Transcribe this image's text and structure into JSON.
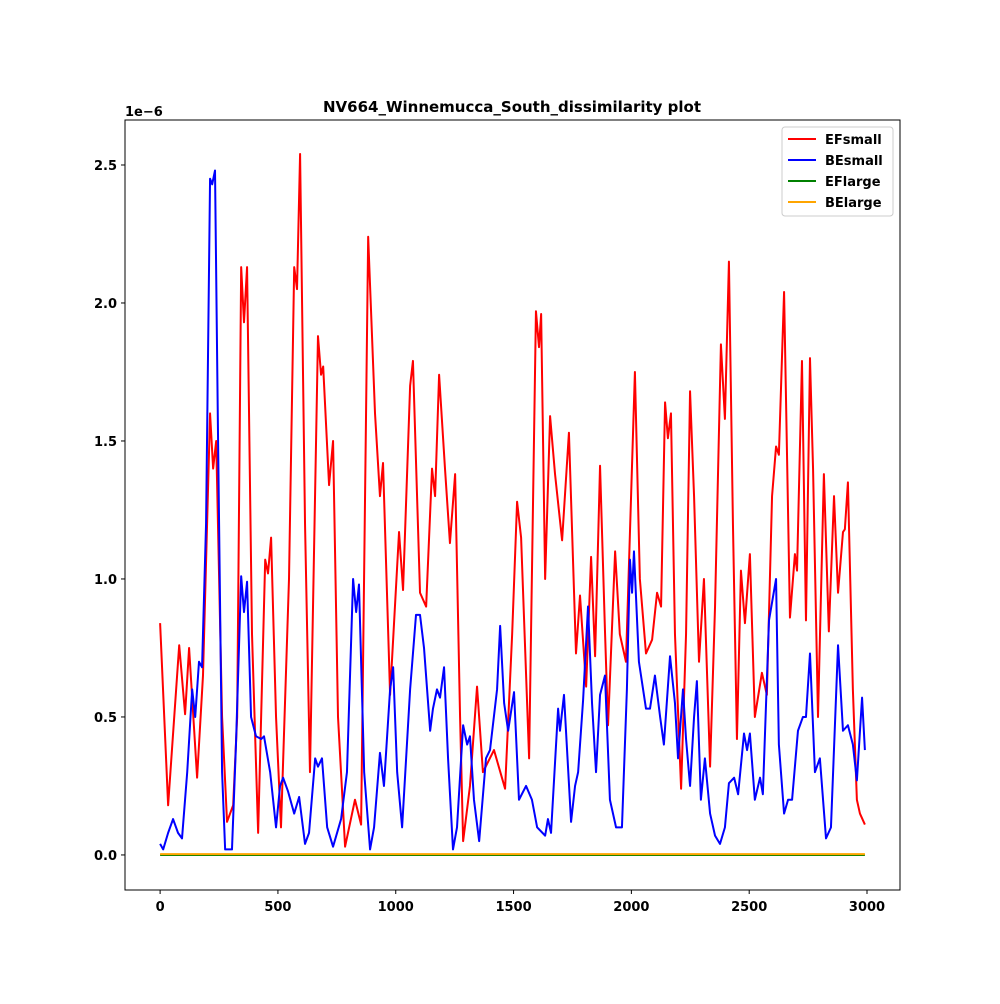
{
  "chart_data": {
    "type": "line",
    "title": "NV664_Winnemucca_South_dissimilarity plot",
    "y_offset_label": "1e−6",
    "xlim": [
      -149,
      3140
    ],
    "ylim": [
      -0.127,
      2.663
    ],
    "xticks": [
      0,
      500,
      1000,
      1500,
      2000,
      2500,
      3000
    ],
    "yticks": [
      {
        "value": 0,
        "label": "0.0"
      },
      0.5,
      {
        "value": 1,
        "label": "1.0"
      },
      1.5,
      {
        "value": 2,
        "label": "2.0"
      },
      2.5
    ],
    "legend": "upper right",
    "series": [
      {
        "name": "EFsmall",
        "color": "#ff0000",
        "x": [
          0,
          34,
          81,
          106,
          123,
          157,
          182,
          212,
          225,
          238,
          263,
          284,
          310,
          327,
          344,
          356,
          369,
          390,
          416,
          446,
          458,
          471,
          492,
          513,
          547,
          569,
          581,
          594,
          615,
          636,
          670,
          683,
          692,
          717,
          734,
          755,
          785,
          827,
          853,
          883,
          912,
          933,
          946,
          976,
          1014,
          1031,
          1061,
          1073,
          1103,
          1129,
          1154,
          1167,
          1184,
          1209,
          1230,
          1252,
          1273,
          1286,
          1315,
          1345,
          1370,
          1417,
          1464,
          1494,
          1515,
          1532,
          1566,
          1595,
          1608,
          1617,
          1634,
          1655,
          1676,
          1706,
          1735,
          1765,
          1782,
          1808,
          1829,
          1846,
          1867,
          1888,
          1901,
          1931,
          1951,
          1977,
          2015,
          2036,
          2062,
          2088,
          2109,
          2126,
          2143,
          2155,
          2168,
          2185,
          2211,
          2232,
          2249,
          2266,
          2287,
          2308,
          2334,
          2355,
          2380,
          2397,
          2414,
          2431,
          2448,
          2465,
          2482,
          2503,
          2524,
          2554,
          2575,
          2597,
          2614,
          2626,
          2648,
          2673,
          2694,
          2703,
          2724,
          2741,
          2758,
          2771,
          2792,
          2817,
          2838,
          2860,
          2877,
          2898,
          2906,
          2919,
          2940,
          2957,
          2970,
          2991
        ],
        "values": [
          0.84,
          0.18,
          0.76,
          0.51,
          0.75,
          0.28,
          0.65,
          1.6,
          1.4,
          1.5,
          0.5,
          0.12,
          0.18,
          0.5,
          2.13,
          1.93,
          2.13,
          0.8,
          0.08,
          1.07,
          1.02,
          1.15,
          0.5,
          0.1,
          1.0,
          2.13,
          2.05,
          2.54,
          1.2,
          0.3,
          1.88,
          1.74,
          1.77,
          1.34,
          1.5,
          0.5,
          0.03,
          0.2,
          0.11,
          2.24,
          1.6,
          1.3,
          1.42,
          0.58,
          1.17,
          0.96,
          1.7,
          1.79,
          0.95,
          0.9,
          1.4,
          1.3,
          1.74,
          1.4,
          1.13,
          1.38,
          0.5,
          0.05,
          0.25,
          0.61,
          0.3,
          0.38,
          0.24,
          0.8,
          1.28,
          1.15,
          0.35,
          1.97,
          1.84,
          1.96,
          1.0,
          1.59,
          1.38,
          1.14,
          1.53,
          0.73,
          0.94,
          0.61,
          1.08,
          0.72,
          1.41,
          0.81,
          0.47,
          1.1,
          0.8,
          0.7,
          1.75,
          1.0,
          0.73,
          0.78,
          0.95,
          0.9,
          1.64,
          1.51,
          1.6,
          0.8,
          0.24,
          0.8,
          1.68,
          1.3,
          0.7,
          1.0,
          0.32,
          0.9,
          1.85,
          1.58,
          2.15,
          1.2,
          0.42,
          1.03,
          0.84,
          1.09,
          0.5,
          0.66,
          0.58,
          1.3,
          1.48,
          1.45,
          2.04,
          0.86,
          1.09,
          1.03,
          1.79,
          0.85,
          1.8,
          1.4,
          0.5,
          1.38,
          0.81,
          1.3,
          0.95,
          1.17,
          1.18,
          1.35,
          0.6,
          0.2,
          0.15,
          0.11
        ]
      },
      {
        "name": "BEsmall",
        "color": "#0000ff",
        "x": [
          0,
          13,
          34,
          55,
          76,
          93,
          115,
          136,
          149,
          165,
          178,
          195,
          212,
          221,
          233,
          246,
          263,
          276,
          305,
          322,
          344,
          356,
          369,
          386,
          407,
          429,
          441,
          467,
          492,
          509,
          522,
          543,
          569,
          590,
          615,
          632,
          658,
          670,
          687,
          709,
          734,
          768,
          793,
          819,
          832,
          844,
          866,
          891,
          908,
          933,
          950,
          976,
          989,
          1006,
          1027,
          1061,
          1086,
          1103,
          1120,
          1146,
          1158,
          1175,
          1188,
          1205,
          1222,
          1243,
          1260,
          1286,
          1303,
          1315,
          1332,
          1354,
          1383,
          1400,
          1430,
          1443,
          1460,
          1477,
          1502,
          1523,
          1553,
          1578,
          1600,
          1634,
          1646,
          1659,
          1689,
          1697,
          1714,
          1744,
          1761,
          1774,
          1795,
          1816,
          1833,
          1850,
          1867,
          1888,
          1909,
          1935,
          1960,
          1981,
          1994,
          2003,
          2011,
          2032,
          2062,
          2079,
          2100,
          2122,
          2138,
          2164,
          2185,
          2198,
          2219,
          2232,
          2249,
          2266,
          2278,
          2295,
          2312,
          2334,
          2355,
          2376,
          2397,
          2414,
          2436,
          2453,
          2478,
          2491,
          2503,
          2524,
          2546,
          2558,
          2584,
          2614,
          2626,
          2648,
          2665,
          2682,
          2707,
          2728,
          2741,
          2758,
          2779,
          2800,
          2826,
          2847,
          2877,
          2898,
          2919,
          2940,
          2957,
          2979,
          2991
        ],
        "values": [
          0.04,
          0.02,
          0.08,
          0.13,
          0.08,
          0.06,
          0.3,
          0.6,
          0.5,
          0.7,
          0.68,
          1.2,
          2.45,
          2.43,
          2.48,
          1.5,
          0.3,
          0.02,
          0.02,
          0.4,
          1.01,
          0.88,
          0.99,
          0.5,
          0.43,
          0.42,
          0.43,
          0.3,
          0.1,
          0.25,
          0.28,
          0.23,
          0.15,
          0.21,
          0.04,
          0.08,
          0.35,
          0.32,
          0.35,
          0.1,
          0.03,
          0.13,
          0.3,
          1.0,
          0.88,
          0.98,
          0.3,
          0.02,
          0.1,
          0.37,
          0.25,
          0.6,
          0.68,
          0.3,
          0.1,
          0.6,
          0.87,
          0.87,
          0.75,
          0.45,
          0.53,
          0.6,
          0.57,
          0.68,
          0.35,
          0.02,
          0.1,
          0.47,
          0.4,
          0.43,
          0.2,
          0.05,
          0.35,
          0.38,
          0.6,
          0.83,
          0.55,
          0.45,
          0.59,
          0.2,
          0.25,
          0.2,
          0.1,
          0.07,
          0.13,
          0.08,
          0.53,
          0.45,
          0.58,
          0.12,
          0.25,
          0.3,
          0.56,
          0.9,
          0.55,
          0.3,
          0.58,
          0.65,
          0.2,
          0.1,
          0.1,
          0.6,
          1.07,
          0.95,
          1.1,
          0.7,
          0.53,
          0.53,
          0.65,
          0.5,
          0.4,
          0.72,
          0.55,
          0.35,
          0.6,
          0.42,
          0.25,
          0.5,
          0.63,
          0.2,
          0.35,
          0.15,
          0.07,
          0.04,
          0.1,
          0.26,
          0.28,
          0.22,
          0.44,
          0.38,
          0.44,
          0.2,
          0.28,
          0.22,
          0.85,
          1.0,
          0.4,
          0.15,
          0.2,
          0.2,
          0.45,
          0.5,
          0.5,
          0.73,
          0.3,
          0.35,
          0.06,
          0.1,
          0.76,
          0.45,
          0.47,
          0.4,
          0.27,
          0.57,
          0.38
        ]
      },
      {
        "name": "EFlarge",
        "color": "#008000",
        "x": [
          0,
          2991
        ],
        "values": [
          0,
          0
        ]
      },
      {
        "name": "BElarge",
        "color": "#ffa500",
        "x": [
          0,
          2991
        ],
        "values": [
          0.003,
          0.003
        ]
      }
    ]
  }
}
